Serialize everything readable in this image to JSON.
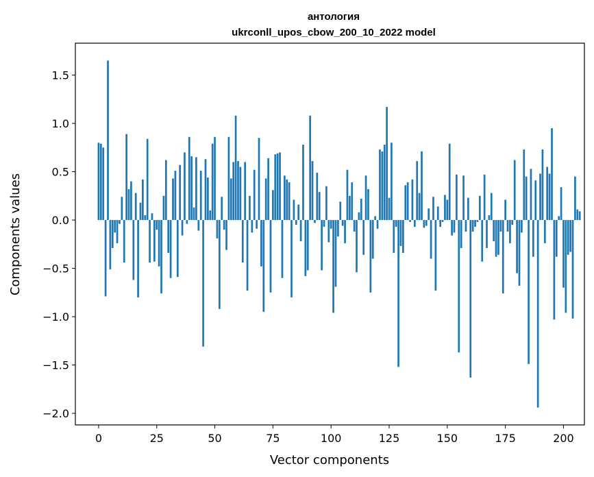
{
  "chart_data": {
    "type": "bar",
    "title_line1": "антология",
    "title_line2": "ukrconll_upos_cbow_200_10_2022 model",
    "xlabel": "Vector components",
    "ylabel": "Components values",
    "xlim": [
      -10,
      209
    ],
    "ylim": [
      -2.12,
      1.83
    ],
    "xticks": [
      0,
      25,
      50,
      75,
      100,
      125,
      150,
      175,
      200
    ],
    "xtick_labels": [
      "0",
      "25",
      "50",
      "75",
      "100",
      "125",
      "150",
      "175",
      "200"
    ],
    "yticks": [
      1.5,
      1.0,
      0.5,
      0.0,
      -0.5,
      -1.0,
      -1.5,
      -2.0
    ],
    "ytick_labels": [
      "1.5",
      "1.0",
      "0.5",
      "0.0",
      "−0.5",
      "−1.0",
      "−1.5",
      "−2.0"
    ],
    "bar_color": "#1f77b4",
    "values": [
      0.8,
      0.79,
      0.75,
      -0.79,
      1.65,
      -0.51,
      -0.29,
      -0.13,
      -0.24,
      -0.04,
      0.24,
      -0.44,
      0.89,
      0.32,
      0.4,
      -0.62,
      0.28,
      -0.8,
      0.18,
      0.42,
      0.05,
      0.84,
      -0.44,
      0.07,
      -0.43,
      -0.1,
      -0.48,
      -0.76,
      0.25,
      0.62,
      -0.34,
      -0.6,
      0.43,
      0.51,
      -0.59,
      0.57,
      -0.16,
      0.7,
      -0.04,
      0.86,
      0.66,
      0.13,
      0.65,
      -0.11,
      0.51,
      -1.31,
      0.63,
      0.44,
      0.1,
      0.79,
      0.86,
      -0.19,
      -0.92,
      0.24,
      -0.1,
      -0.31,
      0.86,
      0.43,
      0.6,
      1.08,
      0.61,
      0.55,
      -0.44,
      0.6,
      -0.73,
      0.25,
      -0.13,
      0.52,
      -0.09,
      0.85,
      -0.48,
      -0.95,
      0.43,
      0.64,
      -0.75,
      0.31,
      0.68,
      0.69,
      0.7,
      -0.6,
      0.46,
      0.42,
      0.39,
      -0.8,
      0.21,
      -0.05,
      0.16,
      -0.22,
      0.78,
      -0.58,
      -0.52,
      1.08,
      0.61,
      -0.03,
      0.49,
      0.29,
      -0.52,
      -0.07,
      0.35,
      -0.23,
      -0.09,
      -0.96,
      -0.69,
      -0.17,
      0.19,
      -0.06,
      -0.24,
      0.52,
      0.25,
      0.39,
      -0.12,
      -0.54,
      0.08,
      0.22,
      -0.36,
      0.46,
      0.32,
      -0.75,
      -0.4,
      0.04,
      -0.09,
      0.73,
      0.71,
      0.78,
      1.17,
      0.23,
      0.8,
      -0.34,
      -0.07,
      -1.52,
      -0.27,
      -0.34,
      0.36,
      0.39,
      -0.02,
      0.42,
      -0.07,
      0.61,
      0.28,
      0.71,
      -0.08,
      -0.06,
      0.12,
      -0.4,
      0.24,
      -0.73,
      0.14,
      -0.07,
      -0.02,
      0.26,
      0.21,
      0.79,
      -0.16,
      -0.13,
      0.47,
      -1.37,
      -0.29,
      0.46,
      -0.12,
      0.23,
      -1.63,
      -0.12,
      -0.07,
      -0.02,
      0.25,
      -0.43,
      0.47,
      -0.29,
      0.05,
      0.28,
      -0.22,
      -0.38,
      -0.36,
      -0.12,
      -0.76,
      0.21,
      -0.12,
      -0.24,
      -0.05,
      0.62,
      -0.55,
      -0.68,
      -0.13,
      0.73,
      0.45,
      -1.49,
      0.53,
      -0.38,
      0.41,
      -1.94,
      0.48,
      0.73,
      -0.24,
      0.55,
      0.48,
      0.95,
      -1.03,
      -0.38,
      0.04,
      0.34,
      -0.7,
      -0.96,
      -0.36,
      -0.33,
      -1.02,
      0.45,
      0.11,
      0.09
    ]
  }
}
